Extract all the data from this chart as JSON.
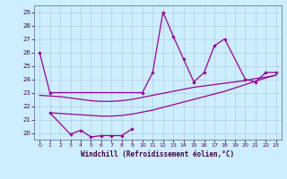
{
  "xlabel": "Windchill (Refroidissement éolien,°C)",
  "bg_color": "#cceeff",
  "line_color": "#990099",
  "grid_color": "#b0c4d8",
  "xlim": [
    -0.5,
    23.5
  ],
  "ylim": [
    19.5,
    29.5
  ],
  "yticks": [
    20,
    21,
    22,
    23,
    24,
    25,
    26,
    27,
    28,
    29
  ],
  "xticks": [
    0,
    1,
    2,
    3,
    4,
    5,
    6,
    7,
    8,
    9,
    10,
    11,
    12,
    13,
    14,
    15,
    16,
    17,
    18,
    19,
    20,
    21,
    22,
    23
  ],
  "line_jagged_x": [
    0,
    1,
    10,
    11,
    12,
    13,
    14,
    15,
    16,
    17,
    18,
    20,
    21,
    22,
    23
  ],
  "line_jagged_y": [
    26.0,
    23.0,
    23.0,
    24.5,
    29.0,
    27.2,
    25.5,
    23.8,
    24.5,
    26.5,
    27.0,
    24.0,
    23.8,
    24.5,
    24.5
  ],
  "line_bottom_x": [
    1,
    3,
    4,
    5,
    6,
    7,
    8,
    9
  ],
  "line_bottom_y": [
    21.5,
    19.9,
    20.2,
    19.7,
    19.8,
    19.8,
    19.8,
    20.3
  ],
  "smooth1_x": [
    0,
    1,
    2,
    3,
    4,
    5,
    6,
    7,
    8,
    9,
    10,
    11,
    12,
    13,
    14,
    15,
    16,
    17,
    18,
    19,
    20,
    21,
    22,
    23
  ],
  "smooth1_y": [
    22.8,
    22.75,
    22.7,
    22.6,
    22.5,
    22.4,
    22.35,
    22.35,
    22.4,
    22.5,
    22.65,
    22.8,
    22.95,
    23.1,
    23.25,
    23.4,
    23.5,
    23.6,
    23.7,
    23.8,
    23.9,
    24.05,
    24.15,
    24.3
  ],
  "smooth2_x": [
    1,
    2,
    3,
    4,
    5,
    6,
    7,
    8,
    9,
    10,
    11,
    12,
    13,
    14,
    15,
    16,
    17,
    18,
    19,
    20,
    21,
    22,
    23
  ],
  "smooth2_y": [
    21.5,
    21.45,
    21.4,
    21.35,
    21.3,
    21.25,
    21.25,
    21.3,
    21.4,
    21.55,
    21.7,
    21.9,
    22.1,
    22.3,
    22.5,
    22.7,
    22.9,
    23.1,
    23.35,
    23.6,
    23.85,
    24.1,
    24.3
  ]
}
